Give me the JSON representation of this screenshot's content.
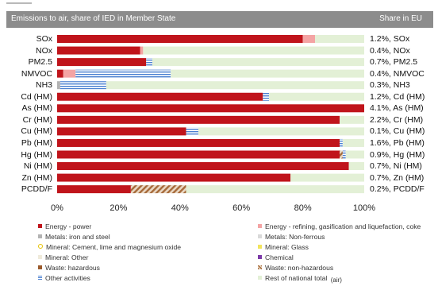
{
  "header": {
    "title": "Emissions to air, share of IED in Member State",
    "share_label": "Share in EU"
  },
  "chart_data": {
    "type": "bar",
    "orientation": "horizontal",
    "stacked": true,
    "title": "Emissions to air, share of IED in Member State",
    "xlim": [
      0,
      100
    ],
    "xticks": [
      "0%",
      "20%",
      "40%",
      "60%",
      "80%",
      "100%"
    ],
    "categories": [
      "SOx",
      "NOx",
      "PM2.5",
      "NMVOC",
      "NH3",
      "Cd (HM)",
      "As (HM)",
      "Cr (HM)",
      "Cu (HM)",
      "Pb (HM)",
      "Hg (HM)",
      "Ni (HM)",
      "Zn (HM)",
      "PCDD/F"
    ],
    "share_in_eu": [
      "1.2%, SOx",
      "0.4%, NOx",
      "0.7%, PM2.5",
      "0.4%, NMVOC",
      "0.3%, NH3",
      "1.2%, Cd (HM)",
      "4.1%, As (HM)",
      "2.2%, Cr (HM)",
      "0.1%, Cu (HM)",
      "1.6%, Pb (HM)",
      "0.9%, Hg (HM)",
      "0.7%, Ni (HM)",
      "0.7%, Zn (HM)",
      "0.2%, PCDD/F"
    ],
    "series": [
      {
        "name": "Energy - power",
        "color": "#c0141b",
        "pattern": "solid",
        "values": [
          80,
          27,
          29,
          2,
          0,
          67,
          100,
          92,
          42,
          92,
          92,
          95,
          76,
          24
        ]
      },
      {
        "name": "Energy - refining, gasification and liquefaction, coke",
        "color": "#f4a4a4",
        "pattern": "solid",
        "values": [
          4,
          1,
          0,
          4,
          0,
          0,
          0,
          0,
          0,
          0,
          0,
          0,
          0,
          0
        ]
      },
      {
        "name": "Metals: iron and steel",
        "color": "#b3b3b3",
        "pattern": "solid",
        "values": [
          0,
          0,
          0,
          0,
          1,
          0,
          0,
          0,
          0,
          0,
          0,
          0,
          0,
          0
        ]
      },
      {
        "name": "Metals: Non-ferrous",
        "color": "#d9d9d9",
        "pattern": "solid",
        "values": [
          0,
          0,
          0,
          0,
          0,
          0,
          0,
          0,
          0,
          0,
          0,
          0,
          0,
          0
        ]
      },
      {
        "name": "Mineral: Cement, lime and magnesium oxide",
        "color": "#e7c200",
        "pattern": "ring",
        "values": [
          0,
          0,
          0,
          0,
          0,
          0,
          0,
          0,
          0,
          0,
          0,
          0,
          0,
          0
        ]
      },
      {
        "name": "Mineral: Glass",
        "color": "#f2e45c",
        "pattern": "solid",
        "values": [
          0,
          0,
          0,
          0,
          0,
          0,
          0,
          0,
          0,
          0,
          0,
          0,
          0,
          0
        ]
      },
      {
        "name": "Mineral: Other",
        "color": "#efeada",
        "pattern": "solid",
        "values": [
          0,
          0,
          0,
          0,
          0,
          0,
          0,
          0,
          0,
          0,
          0,
          0,
          0,
          0
        ]
      },
      {
        "name": "Chemical",
        "color": "#7c3aa8",
        "pattern": "solid",
        "values": [
          0,
          0,
          0,
          0,
          0,
          0,
          0,
          0,
          0,
          0,
          0,
          0,
          0,
          0
        ]
      },
      {
        "name": "Waste: hazardous",
        "color": "#9a5a2c",
        "pattern": "solid",
        "values": [
          0,
          0,
          0,
          0,
          0,
          0,
          0,
          0,
          0,
          0,
          0,
          0,
          0,
          0
        ]
      },
      {
        "name": "Waste: non-hazardous",
        "color": "#a66a3a",
        "pattern": "hatched",
        "values": [
          0,
          0,
          0,
          0,
          0,
          0,
          0,
          0,
          0,
          0,
          1,
          0,
          0,
          18
        ]
      },
      {
        "name": "Other activities",
        "color": "#4a7fd0",
        "pattern": "striped",
        "values": [
          0,
          0,
          2,
          31,
          15,
          2,
          0,
          0,
          4,
          1,
          1,
          0,
          0,
          0
        ]
      },
      {
        "name": "Rest of national total",
        "color": "#e3f0d6",
        "pattern": "solid",
        "values": [
          16,
          72,
          69,
          63,
          84,
          31,
          0,
          8,
          54,
          7,
          6,
          5,
          24,
          58
        ]
      }
    ],
    "legend_suffix": "(air)",
    "grid": false,
    "legend_position": "bottom"
  }
}
